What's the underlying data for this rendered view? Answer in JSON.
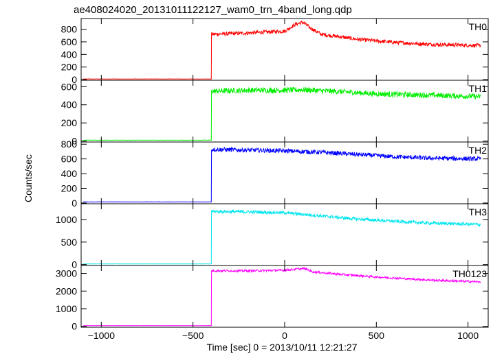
{
  "chart_data": {
    "type": "line",
    "title": "ae408024020_20131011122127_wam0_trn_4band_long.qdp",
    "xlabel": "Time [sec] 0 = 2013/10/11 12:21:27",
    "ylabel": "Counts/sec",
    "xlim": [
      -1110,
      1110
    ],
    "x_ticks": [
      -1000,
      -500,
      0,
      500,
      1000
    ],
    "x_tick_labels": [
      "−1000",
      "−500",
      "0",
      "500",
      "1000"
    ],
    "grid": false,
    "panels": [
      {
        "name": "TH0",
        "color": "#ff0000",
        "ylim": [
          -10,
          970
        ],
        "y_ticks": [
          0,
          200,
          400,
          600,
          800
        ],
        "y_tick_labels": [
          "0",
          "200",
          "400",
          "600",
          "800"
        ],
        "onset_x": -400,
        "pre_level": 10,
        "profile": [
          [
            -400,
            720
          ],
          [
            -200,
            740
          ],
          [
            0,
            770
          ],
          [
            60,
            880
          ],
          [
            100,
            910
          ],
          [
            140,
            820
          ],
          [
            200,
            720
          ],
          [
            400,
            640
          ],
          [
            600,
            590
          ],
          [
            800,
            560
          ],
          [
            1070,
            540
          ]
        ],
        "noise": 30
      },
      {
        "name": "TH1",
        "color": "#00ee00",
        "ylim": [
          -10,
          670
        ],
        "y_ticks": [
          0,
          200,
          400,
          600
        ],
        "y_tick_labels": [
          "0",
          "200",
          "400",
          "600"
        ],
        "onset_x": -400,
        "pre_level": 10,
        "profile": [
          [
            -400,
            550
          ],
          [
            -200,
            560
          ],
          [
            0,
            560
          ],
          [
            100,
            565
          ],
          [
            300,
            545
          ],
          [
            500,
            520
          ],
          [
            800,
            505
          ],
          [
            1070,
            490
          ]
        ],
        "noise": 30
      },
      {
        "name": "TH2",
        "color": "#0000ff",
        "ylim": [
          -10,
          830
        ],
        "y_ticks": [
          0,
          200,
          400,
          600,
          800
        ],
        "y_tick_labels": [
          "0",
          "200",
          "400",
          "600",
          "800"
        ],
        "onset_x": -400,
        "pre_level": 15,
        "profile": [
          [
            -400,
            730
          ],
          [
            -200,
            720
          ],
          [
            0,
            710
          ],
          [
            200,
            690
          ],
          [
            400,
            660
          ],
          [
            600,
            630
          ],
          [
            800,
            610
          ],
          [
            1070,
            600
          ]
        ],
        "noise": 30
      },
      {
        "name": "TH3",
        "color": "#00e5ee",
        "ylim": [
          -20,
          1350
        ],
        "y_ticks": [
          0,
          500,
          1000
        ],
        "y_tick_labels": [
          "0",
          "500",
          "1000"
        ],
        "onset_x": -400,
        "pre_level": 15,
        "profile": [
          [
            -400,
            1180
          ],
          [
            -200,
            1170
          ],
          [
            0,
            1150
          ],
          [
            200,
            1080
          ],
          [
            400,
            1010
          ],
          [
            600,
            960
          ],
          [
            800,
            920
          ],
          [
            1070,
            890
          ]
        ],
        "noise": 35
      },
      {
        "name": "TH0123",
        "color": "#ff00ff",
        "ylim": [
          -50,
          3450
        ],
        "y_ticks": [
          0,
          1000,
          2000,
          3000
        ],
        "y_tick_labels": [
          "0",
          "1000",
          "2000",
          "3000"
        ],
        "onset_x": -400,
        "pre_level": 40,
        "profile": [
          [
            -400,
            3150
          ],
          [
            -200,
            3150
          ],
          [
            0,
            3180
          ],
          [
            80,
            3260
          ],
          [
            110,
            3280
          ],
          [
            150,
            3100
          ],
          [
            300,
            2950
          ],
          [
            500,
            2800
          ],
          [
            800,
            2620
          ],
          [
            1070,
            2520
          ]
        ],
        "noise": 60
      }
    ]
  }
}
